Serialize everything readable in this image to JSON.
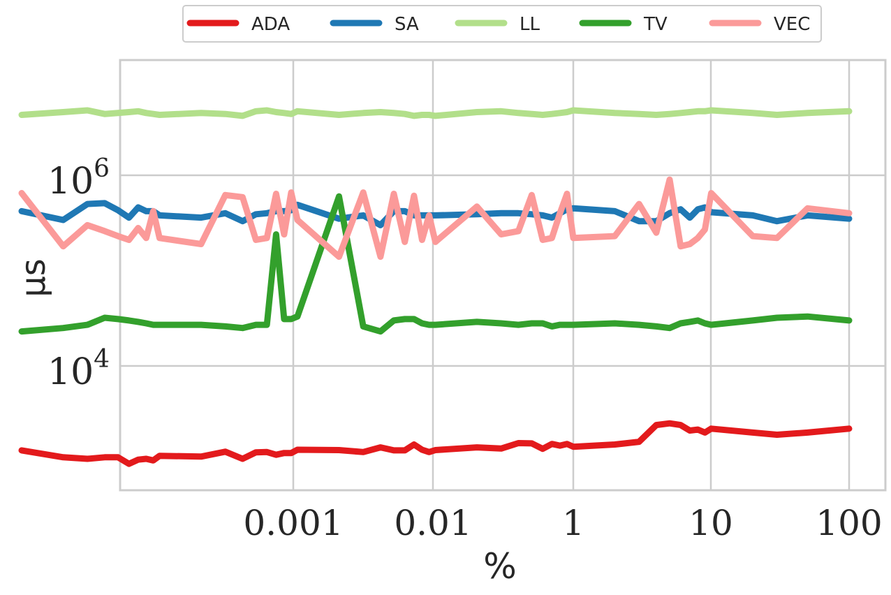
{
  "chart_data": {
    "type": "line",
    "title": "",
    "xlabel": "%",
    "ylabel": "µs",
    "x_scale": "log",
    "y_scale": "log",
    "x_tick_labels": [
      "0.001",
      "0.01",
      "1",
      "10",
      "100"
    ],
    "y_ticks": [
      {
        "base": "10",
        "exp": "6"
      },
      {
        "base": "10",
        "exp": "4"
      }
    ],
    "grid": true,
    "legend_position": "top-center",
    "series": [
      {
        "name": "ADA",
        "color": "#e31a1c",
        "points": [
          [
            0.0001,
            1300
          ],
          [
            0.0002,
            1100
          ],
          [
            0.0003,
            1060
          ],
          [
            0.0004,
            1100
          ],
          [
            0.0005,
            1100
          ],
          [
            0.0006,
            940
          ],
          [
            0.0007,
            1040
          ],
          [
            0.0008,
            1060
          ],
          [
            0.0009,
            1020
          ],
          [
            0.001,
            1140
          ],
          [
            0.002,
            1120
          ],
          [
            0.003,
            1260
          ],
          [
            0.004,
            1060
          ],
          [
            0.005,
            1240
          ],
          [
            0.006,
            1250
          ],
          [
            0.007,
            1170
          ],
          [
            0.008,
            1220
          ],
          [
            0.009,
            1220
          ],
          [
            0.01,
            1320
          ],
          [
            0.02,
            1310
          ],
          [
            0.03,
            1250
          ],
          [
            0.04,
            1400
          ],
          [
            0.05,
            1300
          ],
          [
            0.06,
            1300
          ],
          [
            0.07,
            1500
          ],
          [
            0.08,
            1320
          ],
          [
            0.09,
            1250
          ],
          [
            0.1,
            1310
          ],
          [
            0.2,
            1400
          ],
          [
            0.3,
            1360
          ],
          [
            0.4,
            1550
          ],
          [
            0.5,
            1540
          ],
          [
            0.6,
            1350
          ],
          [
            0.7,
            1520
          ],
          [
            0.8,
            1460
          ],
          [
            0.9,
            1520
          ],
          [
            1,
            1420
          ],
          [
            2,
            1500
          ],
          [
            3,
            1600
          ],
          [
            4,
            2400
          ],
          [
            5,
            2500
          ],
          [
            6,
            2400
          ],
          [
            7,
            2100
          ],
          [
            8,
            2150
          ],
          [
            9,
            2000
          ],
          [
            10,
            2200
          ],
          [
            20,
            2000
          ],
          [
            30,
            1900
          ],
          [
            50,
            2000
          ],
          [
            100,
            2200
          ]
        ]
      },
      {
        "name": "SA",
        "color": "#1f78b4",
        "points": [
          [
            0.0001,
            420000
          ],
          [
            0.0002,
            340000
          ],
          [
            0.0003,
            500000
          ],
          [
            0.0004,
            510000
          ],
          [
            0.0005,
            430000
          ],
          [
            0.0006,
            360000
          ],
          [
            0.0007,
            460000
          ],
          [
            0.0008,
            420000
          ],
          [
            0.0009,
            420000
          ],
          [
            0.001,
            380000
          ],
          [
            0.002,
            360000
          ],
          [
            0.003,
            400000
          ],
          [
            0.004,
            330000
          ],
          [
            0.005,
            390000
          ],
          [
            0.006,
            400000
          ],
          [
            0.007,
            420000
          ],
          [
            0.008,
            420000
          ],
          [
            0.009,
            430000
          ],
          [
            0.01,
            490000
          ],
          [
            0.02,
            350000
          ],
          [
            0.03,
            380000
          ],
          [
            0.04,
            300000
          ],
          [
            0.05,
            420000
          ],
          [
            0.06,
            420000
          ],
          [
            0.07,
            380000
          ],
          [
            0.08,
            380000
          ],
          [
            0.09,
            380000
          ],
          [
            0.1,
            380000
          ],
          [
            0.2,
            390000
          ],
          [
            0.3,
            400000
          ],
          [
            0.4,
            400000
          ],
          [
            0.5,
            390000
          ],
          [
            0.6,
            380000
          ],
          [
            0.7,
            360000
          ],
          [
            0.8,
            400000
          ],
          [
            0.9,
            440000
          ],
          [
            1,
            450000
          ],
          [
            2,
            420000
          ],
          [
            3,
            330000
          ],
          [
            4,
            330000
          ],
          [
            5,
            400000
          ],
          [
            6,
            440000
          ],
          [
            7,
            360000
          ],
          [
            8,
            440000
          ],
          [
            9,
            460000
          ],
          [
            10,
            410000
          ],
          [
            20,
            380000
          ],
          [
            30,
            330000
          ],
          [
            50,
            380000
          ],
          [
            100,
            350000
          ]
        ]
      },
      {
        "name": "LL",
        "color": "#b2df8a",
        "points": [
          [
            0.0001,
            4300000
          ],
          [
            0.0002,
            4600000
          ],
          [
            0.0003,
            4800000
          ],
          [
            0.0004,
            4400000
          ],
          [
            0.0005,
            4500000
          ],
          [
            0.0006,
            4600000
          ],
          [
            0.0007,
            4700000
          ],
          [
            0.0008,
            4500000
          ],
          [
            0.0009,
            4400000
          ],
          [
            0.001,
            4300000
          ],
          [
            0.002,
            4500000
          ],
          [
            0.003,
            4400000
          ],
          [
            0.004,
            4200000
          ],
          [
            0.005,
            4700000
          ],
          [
            0.006,
            4800000
          ],
          [
            0.007,
            4600000
          ],
          [
            0.008,
            4500000
          ],
          [
            0.009,
            4400000
          ],
          [
            0.01,
            4700000
          ],
          [
            0.02,
            4300000
          ],
          [
            0.03,
            4500000
          ],
          [
            0.04,
            4600000
          ],
          [
            0.05,
            4500000
          ],
          [
            0.06,
            4400000
          ],
          [
            0.07,
            4200000
          ],
          [
            0.08,
            4300000
          ],
          [
            0.09,
            4300000
          ],
          [
            0.1,
            4200000
          ],
          [
            0.2,
            4600000
          ],
          [
            0.3,
            4700000
          ],
          [
            0.4,
            4500000
          ],
          [
            0.5,
            4400000
          ],
          [
            0.6,
            4300000
          ],
          [
            0.7,
            4400000
          ],
          [
            0.8,
            4500000
          ],
          [
            0.9,
            4600000
          ],
          [
            1,
            4800000
          ],
          [
            2,
            4500000
          ],
          [
            3,
            4400000
          ],
          [
            4,
            4300000
          ],
          [
            5,
            4400000
          ],
          [
            6,
            4500000
          ],
          [
            7,
            4600000
          ],
          [
            8,
            4700000
          ],
          [
            9,
            4700000
          ],
          [
            10,
            4800000
          ],
          [
            20,
            4500000
          ],
          [
            30,
            4300000
          ],
          [
            50,
            4500000
          ],
          [
            100,
            4700000
          ]
        ]
      },
      {
        "name": "TV",
        "color": "#33a02c",
        "points": [
          [
            0.0001,
            23000
          ],
          [
            0.0002,
            25000
          ],
          [
            0.0003,
            27000
          ],
          [
            0.0004,
            32000
          ],
          [
            0.0005,
            31000
          ],
          [
            0.0006,
            30000
          ],
          [
            0.0007,
            29000
          ],
          [
            0.0008,
            28000
          ],
          [
            0.0009,
            27000
          ],
          [
            0.001,
            27000
          ],
          [
            0.002,
            27000
          ],
          [
            0.003,
            26000
          ],
          [
            0.004,
            25000
          ],
          [
            0.005,
            27000
          ],
          [
            0.006,
            27000
          ],
          [
            0.007,
            240000
          ],
          [
            0.008,
            31000
          ],
          [
            0.009,
            31000
          ],
          [
            0.01,
            33000
          ],
          [
            0.02,
            600000
          ],
          [
            0.03,
            26000
          ],
          [
            0.04,
            23000
          ],
          [
            0.05,
            30000
          ],
          [
            0.06,
            31000
          ],
          [
            0.07,
            31000
          ],
          [
            0.08,
            28000
          ],
          [
            0.09,
            27000
          ],
          [
            0.1,
            27000
          ],
          [
            0.2,
            29000
          ],
          [
            0.3,
            28000
          ],
          [
            0.4,
            27000
          ],
          [
            0.5,
            28000
          ],
          [
            0.6,
            28000
          ],
          [
            0.7,
            26000
          ],
          [
            0.8,
            27000
          ],
          [
            0.9,
            27000
          ],
          [
            1,
            27000
          ],
          [
            2,
            28000
          ],
          [
            3,
            27000
          ],
          [
            4,
            26000
          ],
          [
            5,
            25000
          ],
          [
            6,
            28000
          ],
          [
            7,
            29000
          ],
          [
            8,
            30000
          ],
          [
            9,
            28000
          ],
          [
            10,
            27000
          ],
          [
            20,
            30000
          ],
          [
            30,
            32000
          ],
          [
            50,
            33000
          ],
          [
            100,
            30000
          ]
        ]
      },
      {
        "name": "VEC",
        "color": "#fb9a99",
        "points": [
          [
            0.0001,
            650000
          ],
          [
            0.0002,
            180000
          ],
          [
            0.0003,
            300000
          ],
          [
            0.0004,
            260000
          ],
          [
            0.0005,
            230000
          ],
          [
            0.0006,
            210000
          ],
          [
            0.0007,
            280000
          ],
          [
            0.0008,
            220000
          ],
          [
            0.0009,
            420000
          ],
          [
            0.001,
            220000
          ],
          [
            0.002,
            190000
          ],
          [
            0.003,
            620000
          ],
          [
            0.004,
            590000
          ],
          [
            0.005,
            210000
          ],
          [
            0.006,
            220000
          ],
          [
            0.007,
            640000
          ],
          [
            0.008,
            240000
          ],
          [
            0.009,
            660000
          ],
          [
            0.01,
            340000
          ],
          [
            0.02,
            140000
          ],
          [
            0.03,
            660000
          ],
          [
            0.04,
            140000
          ],
          [
            0.05,
            640000
          ],
          [
            0.06,
            200000
          ],
          [
            0.07,
            610000
          ],
          [
            0.08,
            210000
          ],
          [
            0.09,
            380000
          ],
          [
            0.1,
            200000
          ],
          [
            0.2,
            470000
          ],
          [
            0.3,
            240000
          ],
          [
            0.4,
            260000
          ],
          [
            0.5,
            620000
          ],
          [
            0.6,
            210000
          ],
          [
            0.7,
            220000
          ],
          [
            0.8,
            400000
          ],
          [
            0.9,
            640000
          ],
          [
            1,
            220000
          ],
          [
            2,
            230000
          ],
          [
            3,
            500000
          ],
          [
            4,
            250000
          ],
          [
            5,
            900000
          ],
          [
            6,
            180000
          ],
          [
            7,
            190000
          ],
          [
            8,
            220000
          ],
          [
            9,
            270000
          ],
          [
            10,
            650000
          ],
          [
            20,
            230000
          ],
          [
            30,
            220000
          ],
          [
            50,
            450000
          ],
          [
            100,
            400000
          ]
        ]
      }
    ]
  }
}
